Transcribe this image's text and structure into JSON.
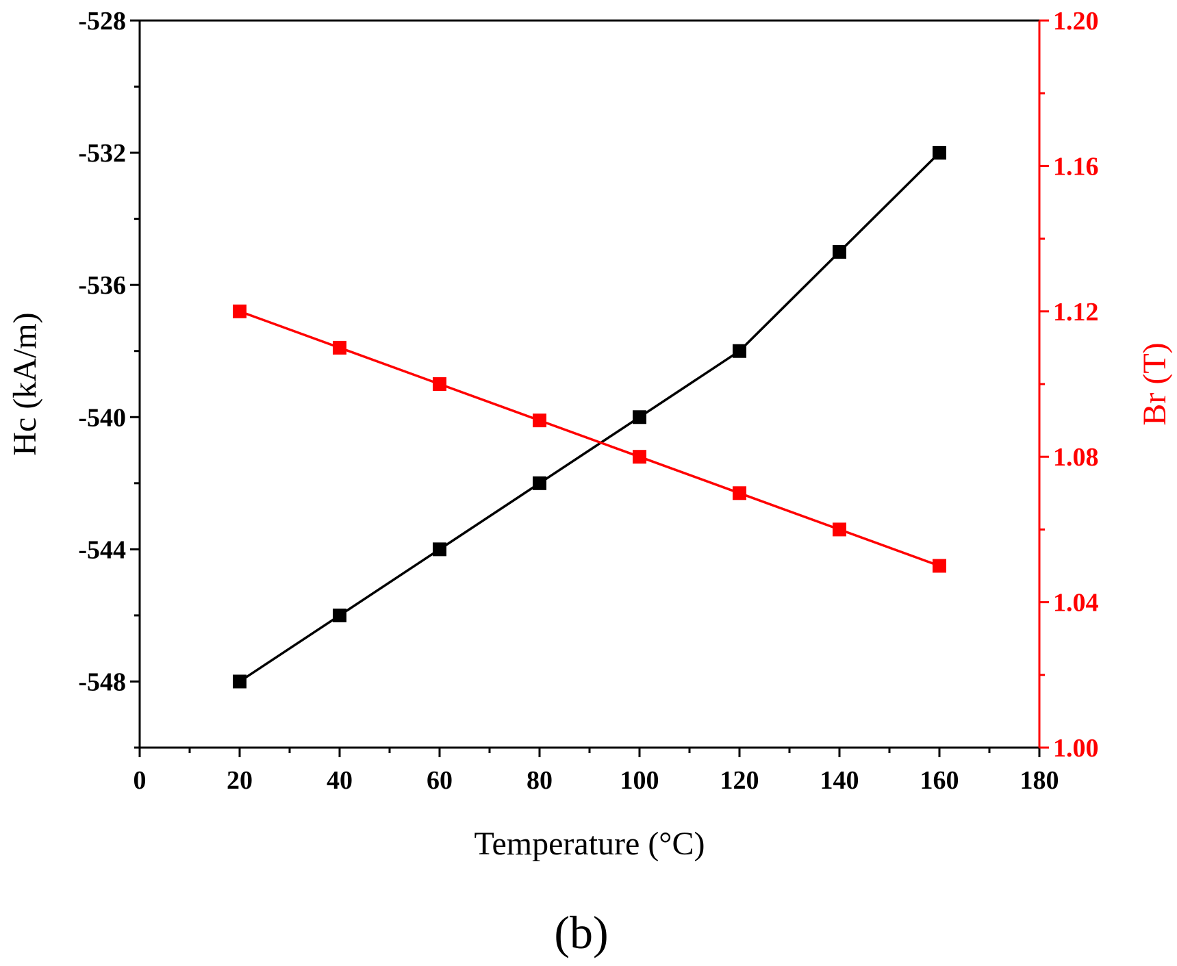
{
  "chart_data": {
    "type": "line",
    "title": "",
    "panel_label": "(b)",
    "xlabel": "Temperature (°C)",
    "xlim": [
      0,
      180
    ],
    "x_major_ticks": [
      0,
      20,
      40,
      60,
      80,
      100,
      120,
      140,
      160,
      180
    ],
    "x_tick_labels": [
      "0",
      "20",
      "40",
      "60",
      "80",
      "100",
      "120",
      "140",
      "160",
      "180"
    ],
    "x_minor_step": 10,
    "x": [
      20,
      40,
      60,
      80,
      100,
      120,
      140,
      160
    ],
    "grid": false,
    "legend": "none",
    "series": [
      {
        "name": "Hc",
        "axis": "left",
        "ylabel": "Hc (kA/m)",
        "ylim": [
          -550,
          -528
        ],
        "major_ticks": [
          -548,
          -544,
          -540,
          -536,
          -532,
          -528
        ],
        "tick_labels": [
          "-548",
          "-544",
          "-540",
          "-536",
          "-532",
          "-528"
        ],
        "minor_step": 2,
        "values": [
          -548,
          -546,
          -544,
          -542,
          -540,
          -538,
          -535,
          -532
        ],
        "color": "#000000",
        "marker": "square"
      },
      {
        "name": "Br",
        "axis": "right",
        "ylabel": "Br (T)",
        "ylim": [
          1.0,
          1.2
        ],
        "major_ticks": [
          1.0,
          1.04,
          1.08,
          1.12,
          1.16,
          1.2
        ],
        "tick_labels": [
          "1.00",
          "1.04",
          "1.08",
          "1.12",
          "1.16",
          "1.20"
        ],
        "minor_step": 0.02,
        "values": [
          1.12,
          1.11,
          1.1,
          1.09,
          1.08,
          1.07,
          1.06,
          1.05
        ],
        "color": "#ff0000",
        "marker": "square"
      }
    ]
  }
}
